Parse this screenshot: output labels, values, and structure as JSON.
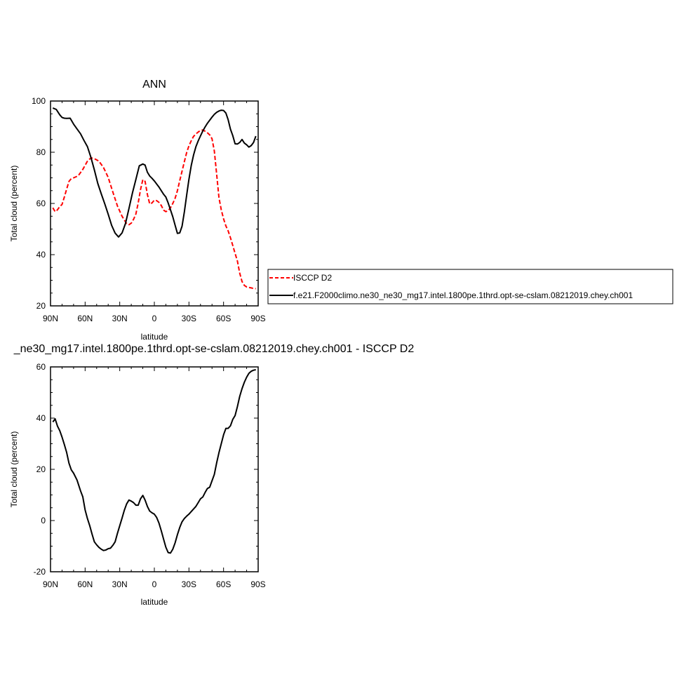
{
  "chart_data": [
    {
      "type": "line",
      "title": "ANN",
      "xlabel": "latitude",
      "ylabel": "Total cloud (percent)",
      "xlim": [
        90,
        -90
      ],
      "ylim": [
        20,
        100
      ],
      "x_ticks": [
        90,
        60,
        30,
        0,
        -30,
        -60,
        -90
      ],
      "x_tick_labels": [
        "90N",
        "60N",
        "30N",
        "0",
        "30S",
        "60S",
        "90S"
      ],
      "y_ticks": [
        20,
        40,
        60,
        80,
        100
      ],
      "y_tick_labels": [
        "20",
        "40",
        "60",
        "80",
        "100"
      ],
      "legend": {
        "placement": "right"
      },
      "series": [
        {
          "name": "ISCCP D2",
          "color": "#ff0000",
          "style": "dashed",
          "x": [
            88,
            86,
            84,
            82,
            80,
            78,
            76,
            74,
            72,
            70,
            66,
            62,
            58,
            55,
            52,
            48,
            44,
            40,
            36,
            32,
            28,
            24,
            22,
            20,
            18,
            16,
            14,
            12,
            10,
            8,
            6,
            4,
            2,
            0,
            -2,
            -4,
            -6,
            -8,
            -10,
            -12,
            -14,
            -16,
            -18,
            -20,
            -22,
            -24,
            -26,
            -28,
            -30,
            -32,
            -34,
            -36,
            -38,
            -40,
            -42,
            -44,
            -46,
            -48,
            -50,
            -52,
            -54,
            -56,
            -58,
            -60,
            -62,
            -64,
            -66,
            -68,
            -70,
            -72,
            -74,
            -76,
            -78,
            -80,
            -82,
            -84,
            -86,
            -88
          ],
          "values": [
            58.3,
            56.8,
            57.5,
            58.8,
            59.6,
            62.5,
            65.6,
            68.6,
            69.7,
            70.0,
            70.8,
            73.3,
            76.5,
            77.8,
            77.5,
            76.5,
            74.0,
            70.2,
            64.5,
            59.0,
            55.0,
            52.1,
            51.7,
            52.3,
            53.8,
            55.9,
            60.2,
            65.4,
            69.3,
            68.6,
            63.5,
            59.8,
            60.2,
            61.3,
            61.1,
            60.4,
            59.2,
            57.4,
            56.8,
            57.2,
            58.3,
            60.0,
            62.0,
            65.0,
            68.9,
            72.6,
            76.3,
            79.8,
            82.5,
            84.5,
            86.2,
            87.1,
            87.9,
            88.5,
            88.7,
            88.2,
            87.6,
            86.8,
            85.3,
            80.5,
            71.5,
            62.3,
            57.5,
            54.0,
            51.2,
            49.3,
            46.6,
            43.6,
            40.5,
            37.5,
            32.8,
            29.5,
            28.0,
            27.4,
            27.2,
            27.0,
            26.8,
            26.7
          ]
        },
        {
          "name": "f.e21.F2000climo.ne30_ne30_mg17.intel.1800pe.1thrd.opt-se-cslam.08212019.chey.ch001",
          "color": "#000000",
          "style": "solid",
          "x": [
            88,
            85,
            82,
            80,
            78,
            76,
            73,
            70,
            67,
            64,
            61,
            58,
            55,
            52,
            49,
            46,
            43,
            40,
            37,
            34,
            31,
            28,
            25,
            22,
            19,
            16,
            13,
            10,
            8,
            6,
            4,
            2,
            0,
            -2,
            -4,
            -6,
            -8,
            -10,
            -12,
            -14,
            -16,
            -18,
            -20,
            -22,
            -24,
            -26,
            -28,
            -30,
            -32,
            -34,
            -36,
            -38,
            -40,
            -42,
            -44,
            -46,
            -48,
            -50,
            -52,
            -54,
            -56,
            -58,
            -60,
            -62,
            -64,
            -66,
            -68,
            -70,
            -72,
            -74,
            -76,
            -78,
            -80,
            -82,
            -84,
            -86,
            -88
          ],
          "values": [
            97.3,
            96.7,
            94.6,
            93.6,
            93.3,
            93.2,
            93.3,
            91.0,
            89.1,
            87.2,
            84.6,
            82.2,
            78.0,
            73.1,
            67.8,
            63.7,
            59.9,
            55.8,
            51.4,
            48.4,
            46.9,
            48.5,
            52.2,
            58.0,
            64.1,
            69.4,
            74.7,
            75.4,
            75.0,
            72.2,
            70.7,
            69.8,
            68.8,
            67.6,
            66.4,
            65.0,
            63.6,
            62.5,
            60.2,
            57.5,
            54.8,
            51.5,
            48.3,
            48.5,
            51.1,
            56.7,
            63.1,
            69.4,
            74.8,
            78.9,
            82.1,
            84.4,
            86.4,
            88.3,
            89.9,
            91.3,
            92.5,
            93.7,
            94.8,
            95.6,
            96.1,
            96.4,
            96.3,
            95.3,
            92.7,
            89.0,
            86.5,
            83.3,
            83.2,
            83.8,
            85.0,
            83.6,
            82.9,
            82.0,
            82.6,
            83.8,
            86.3
          ]
        }
      ]
    },
    {
      "type": "line",
      "title": "_ne30_mg17.intel.1800pe.1thrd.opt-se-cslam.08212019.chey.ch001 - ISCCP D2",
      "xlabel": "latitude",
      "ylabel": "Total cloud (percent)",
      "xlim": [
        90,
        -90
      ],
      "ylim": [
        -20,
        60
      ],
      "x_ticks": [
        90,
        60,
        30,
        0,
        -30,
        -60,
        -90
      ],
      "x_tick_labels": [
        "90N",
        "60N",
        "30N",
        "0",
        "30S",
        "60S",
        "90S"
      ],
      "y_ticks": [
        -20,
        0,
        20,
        40,
        60
      ],
      "y_tick_labels": [
        "-20",
        "0",
        "20",
        "40",
        "60"
      ],
      "series": [
        {
          "color": "#000000",
          "style": "solid",
          "x": [
            88,
            86,
            84,
            82,
            80,
            78,
            76,
            74,
            72,
            70,
            67,
            64,
            62,
            60,
            58,
            56,
            54,
            52,
            50,
            48,
            46,
            44,
            42,
            40,
            38,
            36,
            34,
            32,
            30,
            28,
            26,
            24,
            22,
            20,
            18,
            16,
            14,
            12,
            10,
            8,
            6,
            4,
            2,
            0,
            -2,
            -4,
            -6,
            -8,
            -10,
            -12,
            -14,
            -16,
            -18,
            -20,
            -22,
            -24,
            -26,
            -28,
            -30,
            -32,
            -34,
            -36,
            -38,
            -40,
            -42,
            -44,
            -46,
            -48,
            -50,
            -52,
            -54,
            -56,
            -58,
            -60,
            -62,
            -64,
            -66,
            -68,
            -70,
            -72,
            -74,
            -76,
            -78,
            -80,
            -82,
            -84,
            -86,
            -88
          ],
          "values": [
            38.5,
            39.7,
            36.9,
            35.1,
            32.6,
            29.7,
            26.6,
            22.4,
            19.8,
            18.5,
            15.8,
            11.6,
            9.3,
            4.2,
            0.8,
            -2.0,
            -5.3,
            -8.3,
            -9.5,
            -10.5,
            -11.2,
            -11.7,
            -11.5,
            -11.0,
            -10.8,
            -9.7,
            -8.3,
            -5.0,
            -2.0,
            1.0,
            4.0,
            6.5,
            8.0,
            7.6,
            7.0,
            6.0,
            6.0,
            8.5,
            9.8,
            8.0,
            5.5,
            3.7,
            3.0,
            2.5,
            1.2,
            -1.0,
            -4.0,
            -7.3,
            -10.4,
            -12.5,
            -12.7,
            -11.2,
            -8.7,
            -5.5,
            -2.7,
            -0.5,
            0.8,
            1.7,
            2.5,
            3.5,
            4.5,
            5.5,
            7.0,
            8.5,
            9.2,
            11.0,
            12.5,
            13.0,
            15.5,
            18.0,
            22.5,
            26.5,
            30.0,
            33.5,
            36.0,
            36.0,
            37.0,
            39.5,
            41.0,
            44.5,
            48.5,
            51.5,
            54.0,
            56.0,
            57.5,
            58.3,
            58.7,
            58.9
          ]
        }
      ]
    }
  ]
}
